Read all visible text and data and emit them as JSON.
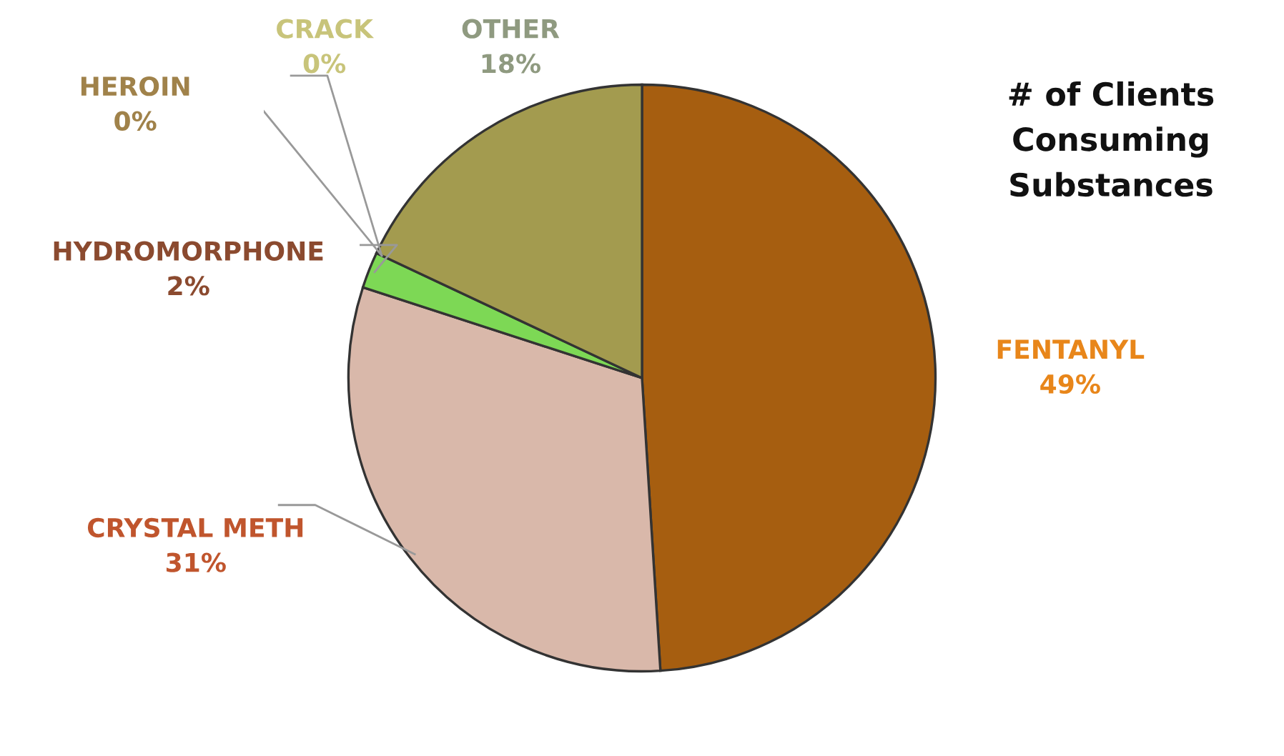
{
  "chart_data": {
    "type": "pie",
    "title": "# of Clients\nConsuming\nSubstances",
    "categories": [
      "FENTANYL",
      "CRYSTAL METH",
      "HYDROMORPHONE",
      "HEROIN",
      "CRACK",
      "OTHER"
    ],
    "values": [
      49,
      31,
      2,
      0,
      0,
      18
    ],
    "value_labels": [
      "49%",
      "31%",
      "2%",
      "0%",
      "0%",
      "18%"
    ],
    "colors": [
      "#a65e10",
      "#d9b8aa",
      "#7dd855",
      "#8a6a3a",
      "#c9c27a",
      "#a39b4f"
    ]
  }
}
